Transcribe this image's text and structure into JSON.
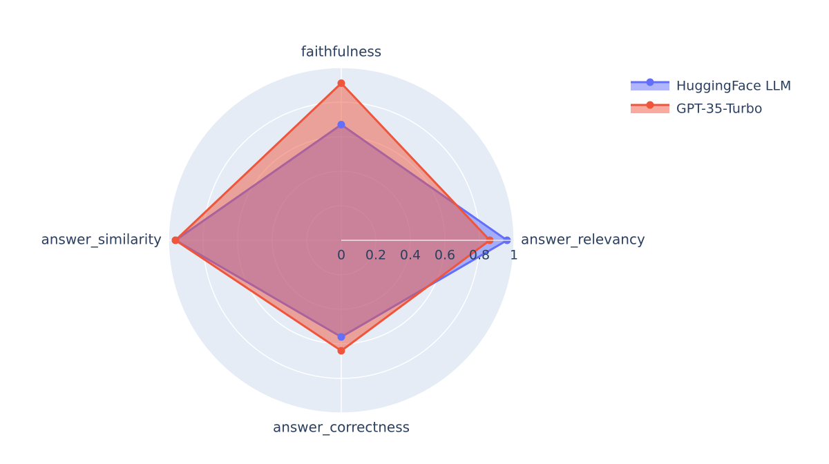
{
  "chart_data": {
    "type": "radar",
    "categories": [
      "faithfulness",
      "answer_relevancy",
      "answer_correctness",
      "answer_similarity"
    ],
    "series": [
      {
        "name": "HuggingFace LLM",
        "color": "#636efa",
        "values": [
          0.67,
          0.96,
          0.56,
          0.96
        ]
      },
      {
        "name": "GPT-35-Turbo",
        "color": "#ef553b",
        "values": [
          0.91,
          0.86,
          0.64,
          0.96
        ]
      }
    ],
    "rlim": [
      0,
      1
    ],
    "rticks": [
      0,
      0.2,
      0.4,
      0.6,
      0.8,
      1
    ],
    "grid": true,
    "legend": "top-right"
  }
}
